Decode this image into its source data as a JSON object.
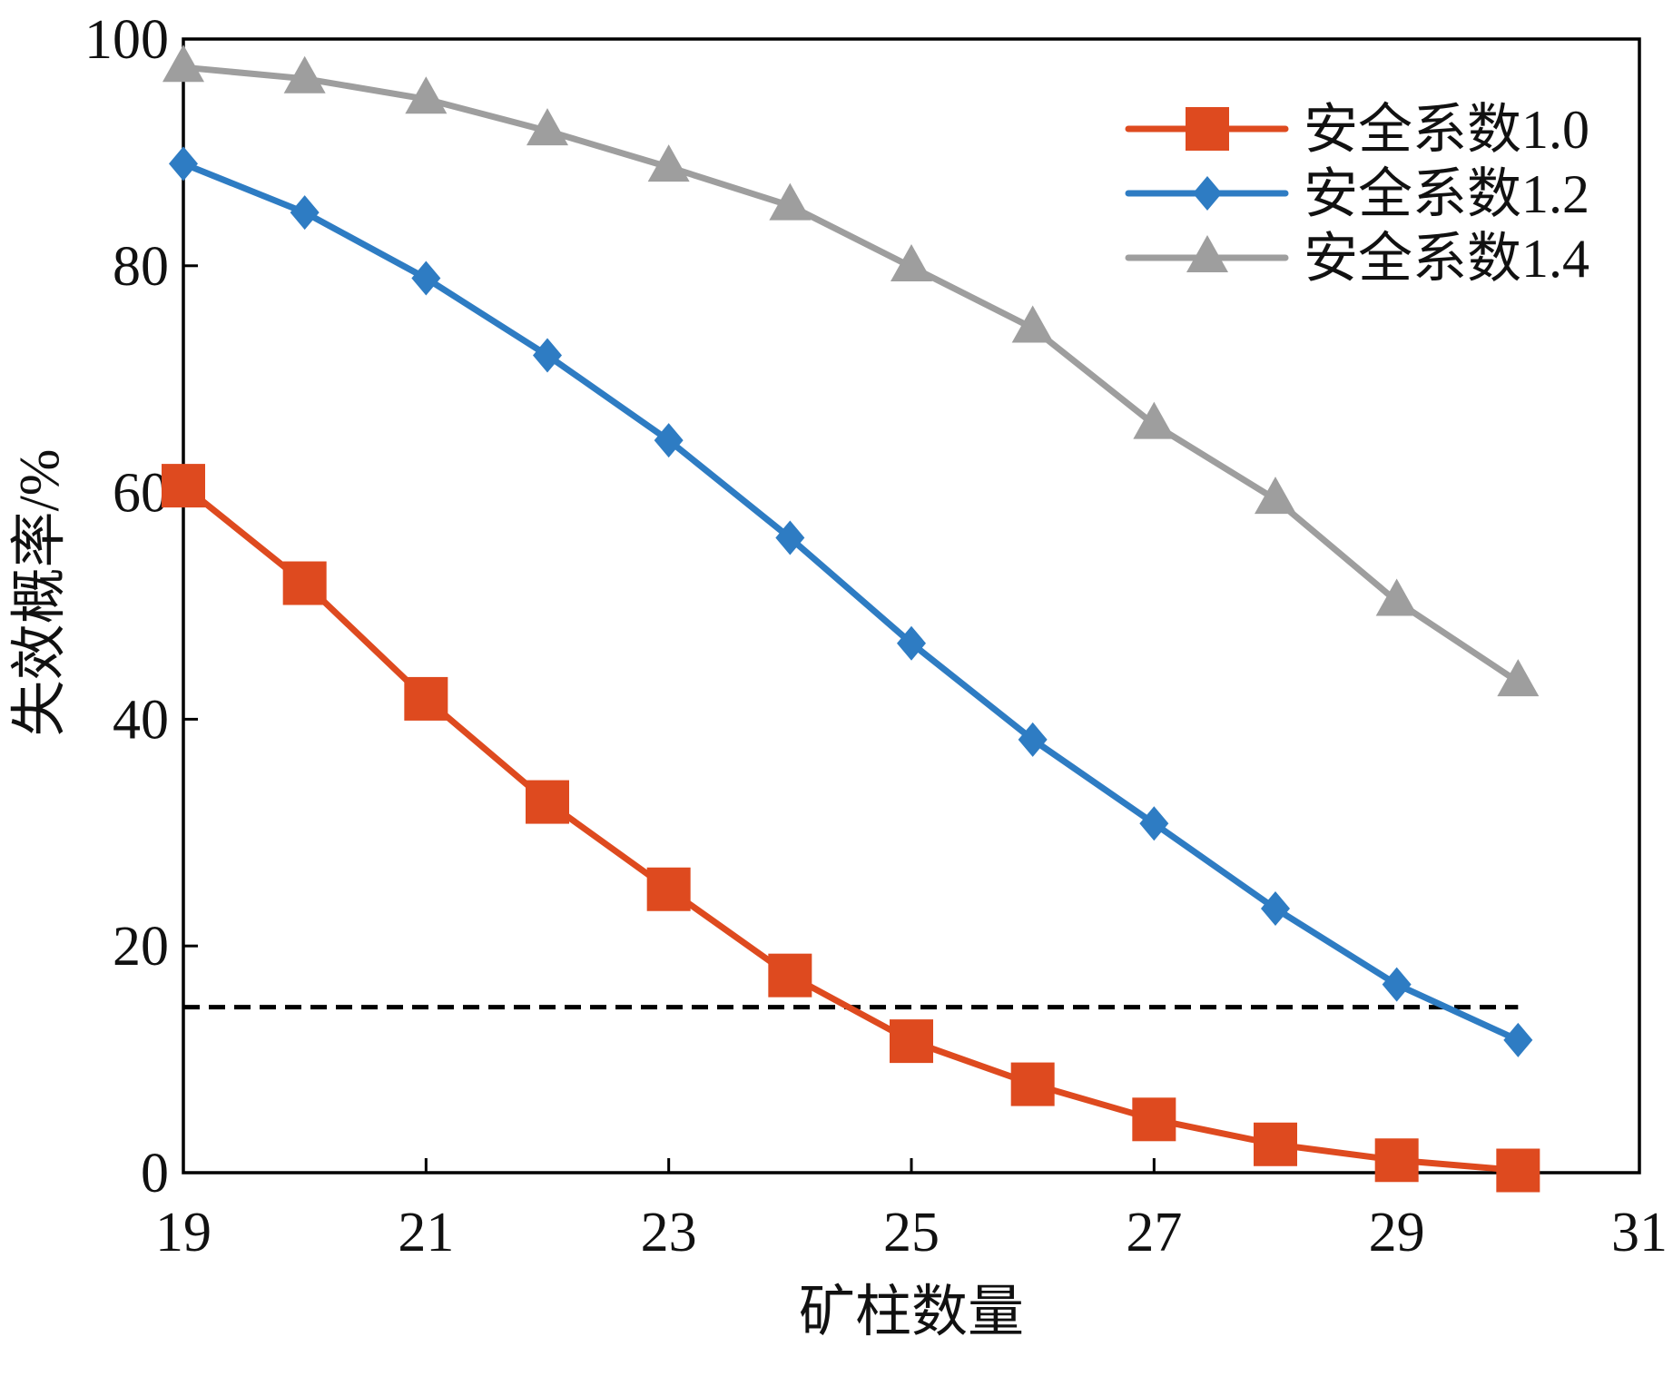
{
  "chart_data": {
    "type": "line",
    "xlabel": "矿柱数量",
    "ylabel": "失效概率/%",
    "xlim": [
      19,
      31
    ],
    "ylim": [
      0,
      100
    ],
    "xticks": [
      19,
      21,
      23,
      25,
      27,
      29,
      31
    ],
    "yticks": [
      0,
      20,
      40,
      60,
      80,
      100
    ],
    "grid": false,
    "legend_position": "top-right",
    "x": [
      19,
      20,
      21,
      22,
      23,
      24,
      25,
      26,
      27,
      28,
      29,
      30
    ],
    "series": [
      {
        "name": "安全系数1.0",
        "color": "#DE4A1F",
        "marker": "square",
        "values": [
          60.6,
          52.0,
          41.8,
          32.7,
          25.0,
          17.4,
          11.6,
          7.8,
          4.7,
          2.5,
          1.1,
          0.2
        ]
      },
      {
        "name": "安全系数1.2",
        "color": "#2E7CC3",
        "marker": "diamond",
        "values": [
          89.0,
          84.7,
          78.9,
          72.1,
          64.6,
          56.0,
          46.7,
          38.2,
          30.8,
          23.3,
          16.6,
          11.7
        ]
      },
      {
        "name": "安全系数1.4",
        "color": "#9E9E9E",
        "marker": "triangle",
        "values": [
          97.5,
          96.5,
          94.7,
          91.9,
          88.7,
          85.3,
          79.9,
          74.5,
          66.0,
          59.4,
          50.4,
          43.3
        ]
      }
    ],
    "reference_line": {
      "y": 14.6,
      "x_range": [
        19,
        30
      ],
      "color": "#000000"
    }
  }
}
